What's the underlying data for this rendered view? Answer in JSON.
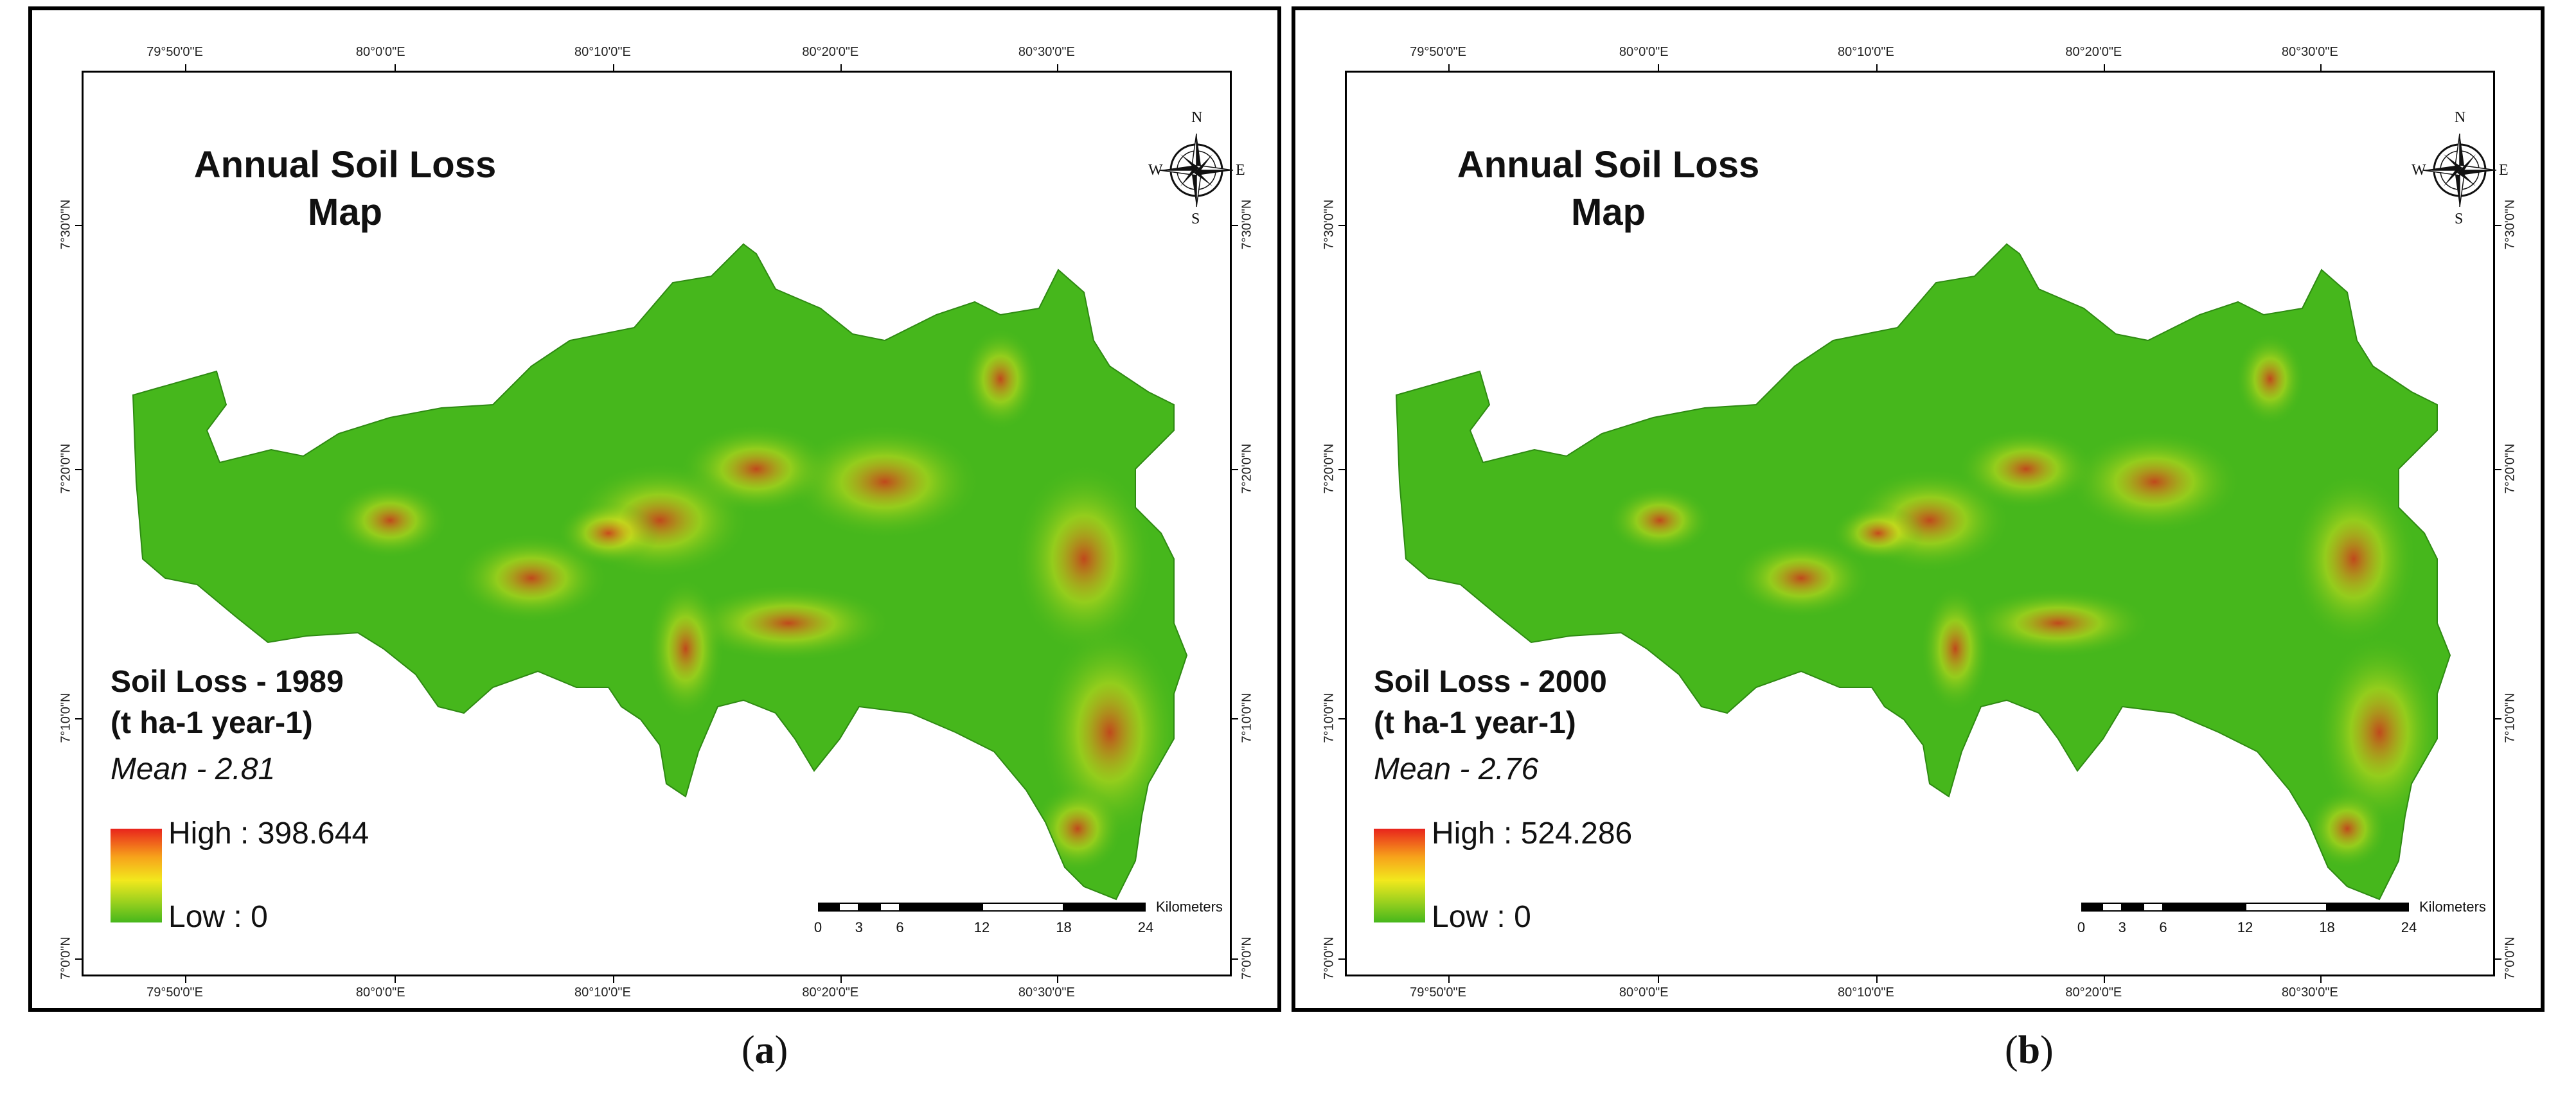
{
  "panels": [
    {
      "title_line1": "Annual Soil Loss",
      "title_line2": "Map",
      "legend_title_line1": "Soil Loss - 1989",
      "legend_title_line2": "(t ha-1 year-1)",
      "mean": "Mean - 2.81",
      "high": "High : 398.644",
      "low": "Low : 0",
      "caption_letter": "a"
    },
    {
      "title_line1": "Annual Soil Loss",
      "title_line2": "Map",
      "legend_title_line1": "Soil Loss - 2000",
      "legend_title_line2": "(t ha-1 year-1)",
      "mean": "Mean - 2.76",
      "high": "High : 524.286",
      "low": "Low : 0",
      "caption_letter": "b"
    }
  ],
  "lon_labels": [
    "79°50'0\"E",
    "80°0'0\"E",
    "80°10'0\"E",
    "80°20'0\"E",
    "80°30'0\"E"
  ],
  "lat_labels": [
    "7°30'0\"N",
    "7°20'0\"N",
    "7°10'0\"N",
    "7°0'0\"N"
  ],
  "compass": {
    "n": "N",
    "s": "S",
    "e": "E",
    "w": "W"
  },
  "scalebar": {
    "ticks": [
      "0",
      "3",
      "6",
      "12",
      "18",
      "24"
    ],
    "unit": "Kilometers"
  },
  "caption": {
    "open": "(",
    "close": ")"
  },
  "colors": {
    "low": "#46b71c",
    "mid": "#f2e81d",
    "high": "#e8241c"
  }
}
